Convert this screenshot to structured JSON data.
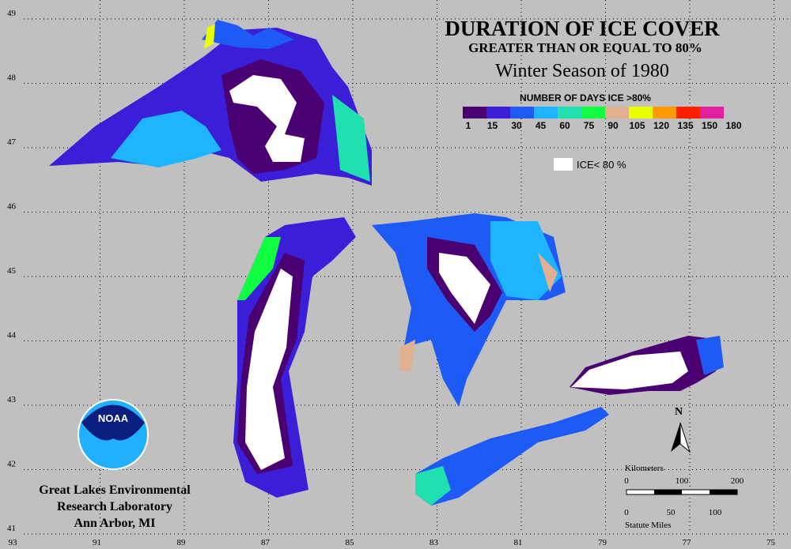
{
  "title": "DURATION OF ICE COVER",
  "subtitle": "GREATER THAN OR EQUAL TO 80%",
  "season": "Winter Season of 1980",
  "legend": {
    "title": "NUMBER OF DAYS ICE >80%",
    "labels": [
      "1",
      "15",
      "30",
      "45",
      "60",
      "75",
      "90",
      "105",
      "120",
      "135",
      "150",
      "180"
    ],
    "colors": [
      "#4a0070",
      "#3a1ed8",
      "#1e5af5",
      "#1eb4ff",
      "#20e0b0",
      "#10ff40",
      "#e0b090",
      "#e8ff00",
      "#ff9900",
      "#ff2000",
      "#e020a0"
    ],
    "white_label": "ICE< 80 %"
  },
  "latitudes": [
    "49",
    "48",
    "47",
    "46",
    "45",
    "44",
    "43",
    "42",
    "41"
  ],
  "longitudes": [
    "93",
    "91",
    "89",
    "87",
    "85",
    "83",
    "81",
    "79",
    "77",
    "75"
  ],
  "north": "N",
  "scale": {
    "km_title": "Kilometers",
    "km_labels": [
      "0",
      "100",
      "200"
    ],
    "mi_title": "Statute Miles",
    "mi_labels": [
      "0",
      "50",
      "100"
    ]
  },
  "logo": "NOAA",
  "org": [
    "Great Lakes Environmental",
    "Research Laboratory",
    "Ann Arbor, MI"
  ]
}
